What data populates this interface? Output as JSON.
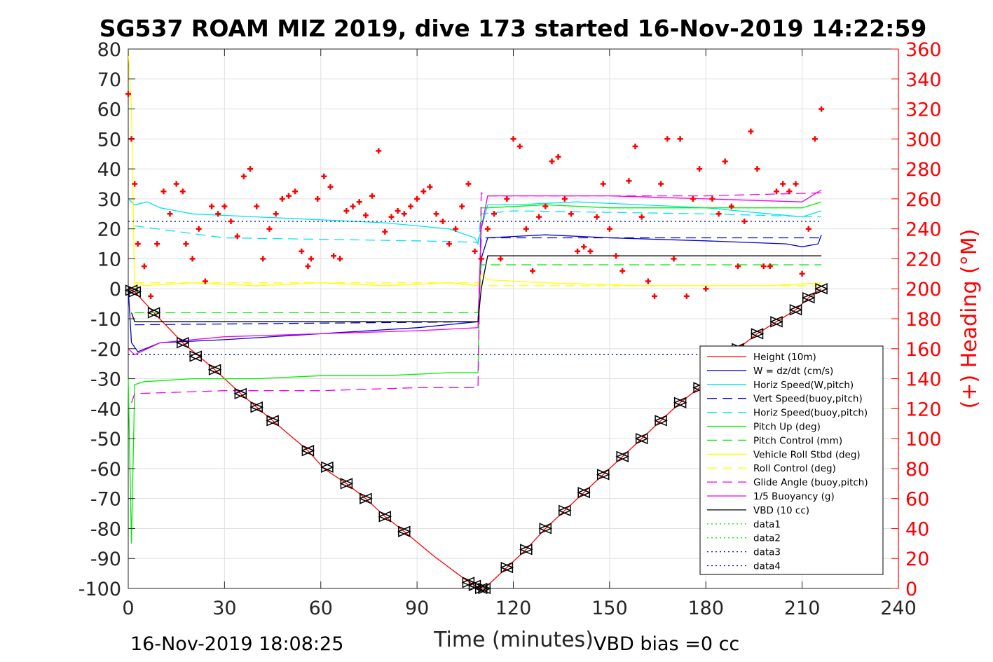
{
  "title": "SG537 ROAM MIZ 2019, dive 173 started 16-Nov-2019 14:22:59",
  "footer": {
    "timestamp": "16-Nov-2019 18:08:25",
    "vbd_bias": "VBD bias =0 cc"
  },
  "colors": {
    "height": "#ff0000",
    "w": "#0000cc",
    "horiz_speed_w": "#00e5ee",
    "vert_speed_buoy": "#0000cc",
    "horiz_speed_buoy": "#00e5ee",
    "pitch_up": "#00ee00",
    "pitch_control": "#00ee00",
    "roll": "#ffff00",
    "roll_control": "#ffff00",
    "glide_angle": "#ee00ee",
    "buoyancy": "#ee00ee",
    "vbd": "#000000",
    "heading": "#ff0000",
    "axis": "#262626",
    "grid": "#e0e0e0"
  },
  "chart_data": {
    "type": "line",
    "title": "SG537 ROAM MIZ 2019, dive 173 started 16-Nov-2019 14:22:59",
    "xlabel": "Time (minutes)",
    "ylabel": "",
    "y2label": "(+) Heading (°M)",
    "xlim": [
      0,
      240
    ],
    "ylim": [
      -100,
      80
    ],
    "y2lim": [
      0,
      360
    ],
    "grid": true,
    "legend_position": "bottom-right",
    "x_ticks": [
      "0",
      "30",
      "60",
      "90",
      "120",
      "150",
      "180",
      "210",
      "240"
    ],
    "y_ticks": [
      "80",
      "70",
      "60",
      "50",
      "40",
      "30",
      "20",
      "10",
      "0",
      "-10",
      "-20",
      "-30",
      "-40",
      "-50",
      "-60",
      "-70",
      "-80",
      "-90",
      "-100"
    ],
    "y2_ticks": [
      "360",
      "340",
      "320",
      "300",
      "280",
      "260",
      "240",
      "220",
      "200",
      "180",
      "160",
      "140",
      "120",
      "100",
      "80",
      "60",
      "40",
      "20",
      "0"
    ],
    "legend": [
      {
        "name": "Height (10m)",
        "color": "#ff0000",
        "dash": "solid"
      },
      {
        "name": "W = dz/dt (cm/s)",
        "color": "#0000cc",
        "dash": "solid"
      },
      {
        "name": "Horiz Speed(W,pitch)",
        "color": "#00e5ee",
        "dash": "solid"
      },
      {
        "name": "Vert Speed(buoy,pitch)",
        "color": "#0000cc",
        "dash": "dashed"
      },
      {
        "name": "Horiz Speed(buoy,pitch)",
        "color": "#00e5ee",
        "dash": "dashed"
      },
      {
        "name": "Pitch Up (deg)",
        "color": "#00ee00",
        "dash": "solid"
      },
      {
        "name": "Pitch Control (mm)",
        "color": "#00ee00",
        "dash": "dashed"
      },
      {
        "name": "Vehicle Roll Stbd (deg)",
        "color": "#ffff00",
        "dash": "solid"
      },
      {
        "name": "Roll Control (deg)",
        "color": "#ffff00",
        "dash": "dashed"
      },
      {
        "name": "Glide Angle (buoy,pitch)",
        "color": "#ee00ee",
        "dash": "dashed"
      },
      {
        "name": "1/5 Buoyancy (g)",
        "color": "#ee00ee",
        "dash": "solid"
      },
      {
        "name": "VBD (10 cc)",
        "color": "#000000",
        "dash": "solid"
      },
      {
        "name": "data1",
        "color": "#00ee00",
        "dash": "dotted"
      },
      {
        "name": "data2",
        "color": "#00ee00",
        "dash": "dotted"
      },
      {
        "name": "data3",
        "color": "#0000cc",
        "dash": "dotted"
      },
      {
        "name": "data4",
        "color": "#0000cc",
        "dash": "dotted"
      }
    ],
    "series": [
      {
        "name": "Height (10m)",
        "x": [
          0,
          2,
          8,
          17,
          27,
          35,
          45,
          56,
          61,
          68,
          74,
          80,
          86,
          95,
          105,
          108,
          110,
          111,
          113,
          118,
          124,
          130,
          136,
          142,
          148,
          154,
          160,
          166,
          172,
          178,
          184,
          190,
          196,
          202,
          208,
          212,
          216
        ],
        "y": [
          0,
          -1,
          -8,
          -18,
          -27,
          -35,
          -44,
          -54,
          -60,
          -65,
          -70,
          -76,
          -81,
          -89,
          -97,
          -99,
          -100,
          -100,
          -98,
          -93,
          -87,
          -80,
          -74,
          -68,
          -62,
          -56,
          -50,
          -44,
          -38,
          -33,
          -26,
          -20,
          -15,
          -11,
          -7,
          -3,
          0
        ]
      },
      {
        "name": "W = dz/dt (cm/s)",
        "x": [
          0,
          1,
          3,
          10,
          30,
          60,
          90,
          109,
          110,
          112,
          130,
          150,
          180,
          205,
          210,
          215,
          216
        ],
        "y": [
          0,
          -18,
          -21,
          -18,
          -17,
          -15,
          -13,
          -11,
          10,
          17,
          18,
          17,
          16,
          15,
          14,
          15,
          18
        ]
      },
      {
        "name": "Horiz Speed(W,pitch)",
        "x": [
          0,
          2,
          6,
          10,
          20,
          40,
          60,
          80,
          90,
          100,
          108,
          109,
          110,
          112,
          120,
          140,
          160,
          180,
          200,
          210,
          216
        ],
        "y": [
          30,
          28,
          29,
          27,
          25,
          24,
          23,
          22,
          21,
          20,
          17,
          15,
          20,
          28,
          28,
          29,
          28,
          27,
          25,
          24,
          26
        ]
      },
      {
        "name": "Vert Speed(buoy,pitch)",
        "x": [
          2,
          109,
          110,
          216
        ],
        "y": [
          -12,
          -11,
          17,
          17
        ]
      },
      {
        "name": "Horiz Speed(buoy,pitch)",
        "x": [
          2,
          30,
          60,
          90,
          109,
          110,
          120,
          150,
          180,
          216
        ],
        "y": [
          21,
          17,
          16.5,
          16,
          15.5,
          25,
          26,
          25.5,
          25,
          24
        ]
      },
      {
        "name": "Pitch Up (deg)",
        "x": [
          0,
          1,
          2,
          5,
          20,
          40,
          60,
          80,
          100,
          109,
          110,
          112,
          130,
          150,
          180,
          210,
          216
        ],
        "y": [
          -30,
          -85,
          -32,
          -31,
          -30,
          -30,
          -29,
          -29,
          -28,
          -28,
          27,
          27,
          28,
          27,
          27,
          27,
          29
        ]
      },
      {
        "name": "Pitch Control (mm)",
        "x": [
          2,
          109,
          110,
          216
        ],
        "y": [
          -8,
          -8,
          8,
          8
        ]
      },
      {
        "name": "Vehicle Roll Stbd (deg)",
        "x": [
          0,
          1,
          2,
          3,
          5,
          20,
          40,
          60,
          80,
          100,
          109,
          110,
          112,
          130,
          160,
          200,
          216
        ],
        "y": [
          80,
          60,
          0,
          2,
          1,
          2,
          1,
          2,
          1,
          2,
          1,
          5,
          3,
          2,
          1,
          1,
          2
        ]
      },
      {
        "name": "Roll Control (deg)",
        "x": [
          2,
          109,
          110,
          216
        ],
        "y": [
          2,
          2,
          1,
          1
        ]
      },
      {
        "name": "Glide Angle (buoy,pitch)",
        "x": [
          1,
          2,
          30,
          60,
          90,
          109,
          110,
          112,
          150,
          180,
          216
        ],
        "y": [
          -38,
          -35,
          -34,
          -34,
          -33,
          -33,
          32,
          31,
          31,
          31,
          32
        ]
      },
      {
        "name": "1/5 Buoyancy (g)",
        "x": [
          0,
          2,
          10,
          30,
          60,
          90,
          109,
          110,
          112,
          150,
          180,
          210,
          216
        ],
        "y": [
          -20,
          -22,
          -18,
          -16,
          -15,
          -14,
          -13,
          20,
          31,
          31,
          30,
          29,
          33
        ]
      },
      {
        "name": "VBD (10 cc)",
        "x": [
          1,
          2,
          109,
          110,
          112,
          216
        ],
        "y": [
          -8,
          -11,
          -11,
          0,
          11,
          11
        ]
      },
      {
        "name": "data1",
        "x": [
          0,
          216
        ],
        "y": [
          22.5,
          22.5
        ]
      },
      {
        "name": "data2",
        "x": [
          0,
          216
        ],
        "y": [
          -22,
          -22
        ]
      },
      {
        "name": "data3",
        "x": [
          0,
          216
        ],
        "y": [
          22.5,
          22.5
        ]
      },
      {
        "name": "data4",
        "x": [
          0,
          216
        ],
        "y": [
          -22,
          -22
        ]
      }
    ],
    "heading": {
      "name": "(+) Heading (°M)",
      "x": [
        0,
        1,
        2,
        3,
        5,
        7,
        9,
        11,
        13,
        15,
        17,
        18,
        20,
        22,
        24,
        26,
        28,
        30,
        32,
        34,
        36,
        38,
        40,
        42,
        44,
        46,
        48,
        50,
        52,
        54,
        56,
        57,
        59,
        61,
        63,
        64,
        66,
        68,
        70,
        72,
        74,
        76,
        78,
        80,
        82,
        84,
        86,
        88,
        90,
        92,
        94,
        96,
        98,
        100,
        102,
        104,
        106,
        108,
        110,
        112,
        114,
        116,
        118,
        120,
        122,
        124,
        126,
        128,
        130,
        132,
        134,
        136,
        138,
        140,
        142,
        144,
        146,
        148,
        150,
        152,
        154,
        156,
        158,
        160,
        162,
        164,
        166,
        168,
        170,
        172,
        174,
        176,
        178,
        180,
        182,
        184,
        186,
        188,
        190,
        192,
        194,
        196,
        198,
        200,
        202,
        204,
        206,
        208,
        210,
        212,
        214,
        216
      ],
      "y": [
        330,
        300,
        270,
        230,
        215,
        195,
        230,
        265,
        250,
        270,
        265,
        230,
        220,
        240,
        205,
        255,
        250,
        255,
        245,
        235,
        275,
        280,
        255,
        220,
        240,
        250,
        260,
        262,
        265,
        225,
        215,
        220,
        260,
        275,
        268,
        222,
        220,
        252,
        255,
        258,
        249,
        262,
        292,
        238,
        248,
        252,
        250,
        255,
        260,
        265,
        268,
        250,
        245,
        230,
        240,
        255,
        270,
        225,
        220,
        240,
        250,
        220,
        260,
        300,
        295,
        240,
        212,
        248,
        255,
        285,
        288,
        260,
        250,
        225,
        228,
        225,
        248,
        270,
        240,
        222,
        212,
        272,
        295,
        248,
        205,
        195,
        270,
        300,
        220,
        300,
        195,
        260,
        280,
        200,
        260,
        250,
        285,
        255,
        215,
        245,
        305,
        280,
        215,
        215,
        265,
        270,
        265,
        270,
        210,
        240,
        300,
        320
      ]
    },
    "markers": {
      "name": "Height markers",
      "x": [
        1,
        2,
        8,
        17,
        21,
        27,
        35,
        40,
        45,
        56,
        62,
        68,
        74,
        80,
        86,
        106,
        108,
        110,
        111,
        118,
        124,
        130,
        136,
        142,
        148,
        154,
        160,
        166,
        172,
        178,
        184,
        190,
        196,
        202,
        208,
        212,
        216
      ],
      "y": [
        -0.5,
        -1,
        -8,
        -18,
        -22.5,
        -27,
        -35,
        -39.5,
        -44,
        -54,
        -59.5,
        -65,
        -70,
        -76,
        -81,
        -98,
        -99,
        -100,
        -100,
        -93,
        -87,
        -80,
        -74,
        -68,
        -62,
        -56,
        -50,
        -44,
        -38,
        -33,
        -26,
        -20,
        -15,
        -11,
        -7,
        -3,
        0
      ]
    }
  }
}
